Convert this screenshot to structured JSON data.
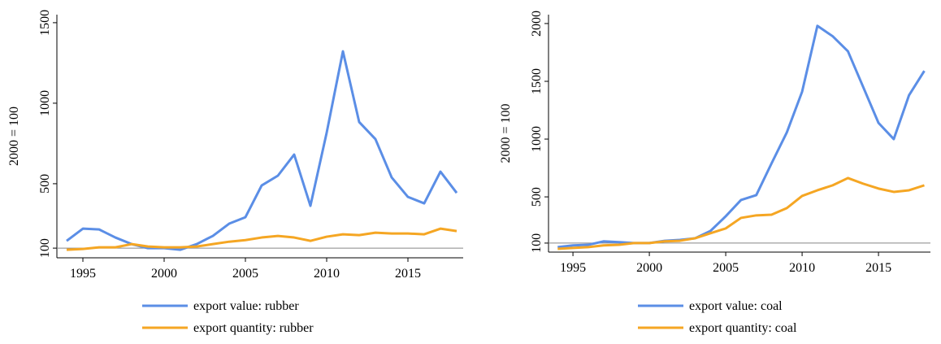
{
  "chart_data": [
    {
      "type": "line",
      "ylabel": "2000 = 100",
      "x": [
        1994,
        1995,
        1996,
        1997,
        1998,
        1999,
        2000,
        2001,
        2002,
        2003,
        2004,
        2005,
        2006,
        2007,
        2008,
        2009,
        2010,
        2011,
        2012,
        2013,
        2014,
        2015,
        2016,
        2017,
        2018
      ],
      "series": [
        {
          "name": "export value: rubber",
          "color": "#5b8ee6",
          "values": [
            145,
            221,
            216,
            166,
            125,
            100,
            100,
            90,
            125,
            176,
            252,
            292,
            489,
            550,
            681,
            363,
            817,
            1322,
            883,
            777,
            539,
            418,
            378,
            575,
            443
          ]
        },
        {
          "name": "export quantity: rubber",
          "color": "#f5a623",
          "values": [
            90,
            95,
            105,
            105,
            125,
            110,
            105,
            105,
            110,
            125,
            140,
            150,
            166,
            176,
            166,
            145,
            171,
            186,
            181,
            196,
            191,
            191,
            186,
            221,
            206
          ]
        }
      ],
      "reference_line": 100,
      "xlim": [
        1993.4,
        2018.4
      ],
      "xticks": [
        1995,
        2000,
        2005,
        2010,
        2015
      ],
      "ylim": [
        40,
        1550
      ],
      "yticks": [
        100,
        500,
        1000,
        1500
      ]
    },
    {
      "type": "line",
      "ylabel": "2000 = 100",
      "x": [
        1994,
        1995,
        1996,
        1997,
        1998,
        1999,
        2000,
        2001,
        2002,
        2003,
        2004,
        2005,
        2006,
        2007,
        2008,
        2009,
        2010,
        2011,
        2012,
        2013,
        2014,
        2015,
        2016,
        2017,
        2018
      ],
      "series": [
        {
          "name": "export value: coal",
          "color": "#5b8ee6",
          "values": [
            65,
            80,
            85,
            115,
            108,
            100,
            100,
            120,
            128,
            142,
            205,
            332,
            473,
            515,
            790,
            1058,
            1410,
            1980,
            1890,
            1760,
            1450,
            1140,
            1000,
            1380,
            1590
          ]
        },
        {
          "name": "export quantity: coal",
          "color": "#f5a623",
          "values": [
            50,
            58,
            65,
            80,
            85,
            100,
            100,
            115,
            120,
            142,
            185,
            227,
            318,
            340,
            346,
            403,
            508,
            557,
            600,
            663,
            614,
            572,
            543,
            557,
            600
          ]
        }
      ],
      "reference_line": 100,
      "xlim": [
        1993.4,
        2018.4
      ],
      "xticks": [
        1995,
        2000,
        2005,
        2010,
        2015
      ],
      "ylim": [
        22,
        2077
      ],
      "yticks": [
        100,
        500,
        1000,
        1500,
        2000
      ]
    }
  ]
}
